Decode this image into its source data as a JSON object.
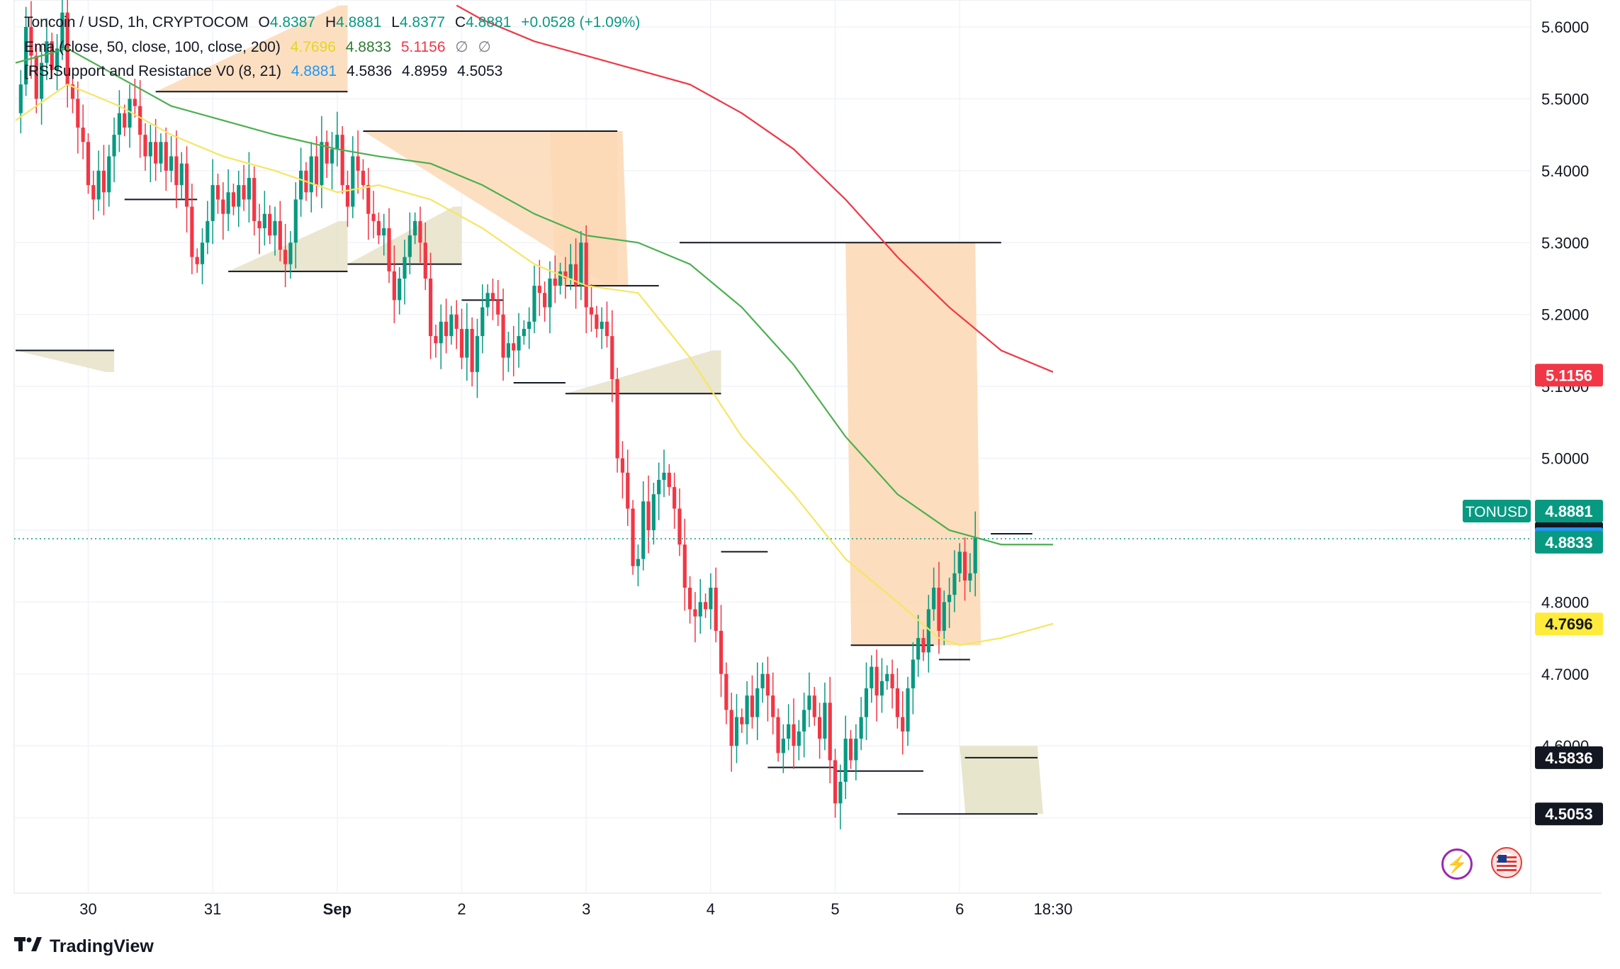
{
  "legend": {
    "line1": {
      "symbol": "Toncoin / USD, 1h, CRYPTOCOM",
      "o_label": "O",
      "o": "4.8387",
      "h_label": "H",
      "h": "4.8881",
      "l_label": "L",
      "l": "4.8377",
      "c_label": "C",
      "c": "4.8881",
      "change": "+0.0528 (+1.09%)"
    },
    "line2": {
      "name": "Ema (close, 50, close, 100, close, 200)",
      "v1": "4.7696",
      "v2": "4.8833",
      "v3": "5.1156",
      "e1": "∅",
      "e2": "∅"
    },
    "line3": {
      "name": "[RS]Support and Resistance V0 (8, 21)",
      "v1": "4.8881",
      "v2": "4.5836",
      "v3": "4.8959",
      "v4": "4.5053"
    }
  },
  "colors": {
    "up": "#089981",
    "down": "#f23645",
    "ema50": "#f5e663",
    "ema100": "#4caf50",
    "ema200": "#f23645",
    "resistance_fill": "#fcd9b6",
    "support_fill": "#e6e2c8",
    "level_line": "#131722",
    "price_line": "#089981",
    "grid": "#f0f3fa"
  },
  "footer": {
    "brand": "TradingView",
    "logo_icon": "tradingview-logo-icon"
  },
  "buttons": {
    "bolt_icon": "lightning-icon",
    "flag_icon": "us-flag-icon"
  },
  "chart_data": {
    "type": "candlestick",
    "title": "Toncoin / USD, 1h, CRYPTOCOM",
    "xlabel": "",
    "ylabel": "",
    "ylim": [
      4.44,
      5.64
    ],
    "grid": true,
    "x_ticks": [
      {
        "label": "30",
        "t": 14
      },
      {
        "label": "31",
        "t": 38
      },
      {
        "label": "Sep",
        "t": 62
      },
      {
        "label": "2",
        "t": 86
      },
      {
        "label": "3",
        "t": 110
      },
      {
        "label": "4",
        "t": 134
      },
      {
        "label": "5",
        "t": 158
      },
      {
        "label": "6",
        "t": 182
      },
      {
        "label": "18:30",
        "t": 200
      }
    ],
    "y_ticks": [
      {
        "label": "5.6000",
        "v": 5.6
      },
      {
        "label": "5.5000",
        "v": 5.5
      },
      {
        "label": "5.4000",
        "v": 5.4
      },
      {
        "label": "5.3000",
        "v": 5.3
      },
      {
        "label": "5.2000",
        "v": 5.2
      },
      {
        "label": "5.1000",
        "v": 5.1
      },
      {
        "label": "5.0000",
        "v": 5.0
      },
      {
        "label": "4.9000",
        "v": 4.9
      },
      {
        "label": "4.8000",
        "v": 4.8
      },
      {
        "label": "4.7000",
        "v": 4.7
      },
      {
        "label": "4.6000",
        "v": 4.6
      },
      {
        "label": "4.5000",
        "v": 4.5
      }
    ],
    "ohlc_path": [
      5.48,
      5.52,
      5.6,
      5.56,
      5.5,
      5.55,
      5.58,
      5.54,
      5.57,
      5.62,
      5.52,
      5.5,
      5.46,
      5.44,
      5.38,
      5.36,
      5.4,
      5.37,
      5.42,
      5.45,
      5.48,
      5.46,
      5.5,
      5.49,
      5.45,
      5.42,
      5.44,
      5.41,
      5.44,
      5.4,
      5.42,
      5.38,
      5.41,
      5.35,
      5.28,
      5.27,
      5.3,
      5.33,
      5.38,
      5.36,
      5.34,
      5.37,
      5.35,
      5.38,
      5.36,
      5.39,
      5.33,
      5.32,
      5.34,
      5.31,
      5.33,
      5.29,
      5.27,
      5.3,
      5.36,
      5.4,
      5.37,
      5.42,
      5.38,
      5.44,
      5.41,
      5.43,
      5.45,
      5.38,
      5.35,
      5.42,
      5.4,
      5.38,
      5.34,
      5.33,
      5.31,
      5.32,
      5.26,
      5.22,
      5.25,
      5.28,
      5.31,
      5.33,
      5.3,
      5.25,
      5.17,
      5.16,
      5.19,
      5.17,
      5.2,
      5.18,
      5.14,
      5.18,
      5.12,
      5.17,
      5.21,
      5.23,
      5.22,
      5.2,
      5.14,
      5.16,
      5.15,
      5.17,
      5.18,
      5.19,
      5.24,
      5.23,
      5.21,
      5.25,
      5.24,
      5.26,
      5.25,
      5.27,
      5.24,
      5.3,
      5.21,
      5.2,
      5.18,
      5.19,
      5.17,
      5.11,
      5.0,
      4.98,
      4.93,
      4.85,
      4.86,
      4.94,
      4.9,
      4.95,
      4.97,
      4.98,
      4.96,
      4.93,
      4.88,
      4.82,
      4.79,
      4.78,
      4.8,
      4.79,
      4.82,
      4.76,
      4.7,
      4.65,
      4.6,
      4.64,
      4.63,
      4.67,
      4.64,
      4.68,
      4.7,
      4.67,
      4.64,
      4.59,
      4.61,
      4.63,
      4.6,
      4.62,
      4.65,
      4.67,
      4.64,
      4.61,
      4.66,
      4.58,
      4.52,
      4.55,
      4.61,
      4.58,
      4.61,
      4.64,
      4.68,
      4.71,
      4.67,
      4.69,
      4.7,
      4.68,
      4.64,
      4.62,
      4.68,
      4.72,
      4.75,
      4.73,
      4.79,
      4.82,
      4.76,
      4.8,
      4.81,
      4.84,
      4.87,
      4.83,
      4.84,
      4.89
    ],
    "ema": [
      {
        "name": "EMA 50",
        "value": 4.7696,
        "points": [
          [
            0,
            5.47
          ],
          [
            10,
            5.52
          ],
          [
            20,
            5.49
          ],
          [
            30,
            5.45
          ],
          [
            40,
            5.42
          ],
          [
            50,
            5.4
          ],
          [
            62,
            5.37
          ],
          [
            70,
            5.38
          ],
          [
            80,
            5.36
          ],
          [
            90,
            5.32
          ],
          [
            100,
            5.27
          ],
          [
            110,
            5.24
          ],
          [
            120,
            5.23
          ],
          [
            130,
            5.14
          ],
          [
            140,
            5.03
          ],
          [
            150,
            4.95
          ],
          [
            160,
            4.86
          ],
          [
            170,
            4.8
          ],
          [
            178,
            4.75
          ],
          [
            182,
            4.74
          ],
          [
            190,
            4.75
          ],
          [
            200,
            4.77
          ]
        ]
      },
      {
        "name": "EMA 100",
        "value": 4.8833,
        "points": [
          [
            0,
            5.55
          ],
          [
            10,
            5.57
          ],
          [
            20,
            5.53
          ],
          [
            30,
            5.49
          ],
          [
            40,
            5.47
          ],
          [
            50,
            5.45
          ],
          [
            62,
            5.43
          ],
          [
            70,
            5.42
          ],
          [
            80,
            5.41
          ],
          [
            90,
            5.38
          ],
          [
            100,
            5.34
          ],
          [
            110,
            5.31
          ],
          [
            120,
            5.3
          ],
          [
            130,
            5.27
          ],
          [
            140,
            5.21
          ],
          [
            150,
            5.13
          ],
          [
            160,
            5.03
          ],
          [
            170,
            4.95
          ],
          [
            180,
            4.9
          ],
          [
            190,
            4.88
          ],
          [
            200,
            4.88
          ]
        ]
      },
      {
        "name": "EMA 200",
        "value": 5.1156,
        "points": [
          [
            85,
            5.63
          ],
          [
            90,
            5.61
          ],
          [
            100,
            5.58
          ],
          [
            110,
            5.56
          ],
          [
            120,
            5.54
          ],
          [
            130,
            5.52
          ],
          [
            140,
            5.48
          ],
          [
            150,
            5.43
          ],
          [
            160,
            5.36
          ],
          [
            170,
            5.28
          ],
          [
            180,
            5.21
          ],
          [
            190,
            5.15
          ],
          [
            200,
            5.12
          ]
        ]
      }
    ],
    "levels": [
      {
        "kind": "support",
        "value": 5.15,
        "t0": 0,
        "t1": 19,
        "fill_to": 5.12
      },
      {
        "kind": "resistance",
        "value": 5.51,
        "t0": 27,
        "t1": 64,
        "fill_to": 5.63
      },
      {
        "kind": "support",
        "value": 5.36,
        "t0": 21,
        "t1": 35
      },
      {
        "kind": "support",
        "value": 5.26,
        "t0": 41,
        "t1": 64,
        "fill_to": 5.33
      },
      {
        "kind": "support",
        "value": 5.27,
        "t0": 64,
        "t1": 86,
        "fill_to": 5.35
      },
      {
        "kind": "resistance",
        "value": 5.455,
        "t0": 67,
        "t1": 116,
        "fill_to": 5.24
      },
      {
        "kind": "support",
        "value": 5.22,
        "t0": 86,
        "t1": 94
      },
      {
        "kind": "resistance",
        "value": 5.24,
        "t0": 106,
        "t1": 124
      },
      {
        "kind": "support",
        "value": 5.105,
        "t0": 96,
        "t1": 106
      },
      {
        "kind": "support",
        "value": 5.09,
        "t0": 106,
        "t1": 136,
        "fill_to": 5.15
      },
      {
        "kind": "resistance",
        "value": 5.3,
        "t0": 128,
        "t1": 190
      },
      {
        "kind": "support",
        "value": 4.87,
        "t0": 136,
        "t1": 145
      },
      {
        "kind": "support",
        "value": 4.57,
        "t0": 145,
        "t1": 158
      },
      {
        "kind": "resistance",
        "value": 4.74,
        "t0": 161,
        "t1": 177
      },
      {
        "kind": "support",
        "value": 4.565,
        "t0": 158,
        "t1": 175
      },
      {
        "kind": "resistance",
        "value": 4.72,
        "t0": 178,
        "t1": 184
      },
      {
        "kind": "resistance",
        "value": 4.895,
        "t0": 188,
        "t1": 196
      },
      {
        "kind": "support",
        "value": 4.5836,
        "t0": 183,
        "t1": 197
      },
      {
        "kind": "support",
        "value": 4.5053,
        "t0": 170,
        "t1": 197
      }
    ],
    "zones": [
      {
        "kind": "resistance",
        "t_left": 103,
        "t_right": 117,
        "top": 5.455,
        "bottom": 5.24
      },
      {
        "kind": "resistance",
        "t_left": 160,
        "t_right": 185,
        "top": 5.3,
        "bottom": 4.74
      },
      {
        "kind": "support",
        "t_left": 182,
        "t_right": 197,
        "top": 4.6,
        "bottom": 4.5053
      }
    ],
    "last_price": 4.8881,
    "price_labels": [
      {
        "text": "4.8959",
        "v": 4.8959,
        "bg": "#131722",
        "fg": "#ffffff"
      },
      {
        "text": "4.8881",
        "v": 4.8881,
        "bg": "#2196f3",
        "fg": "#ffffff",
        "tag": "TONUSD",
        "tag_bg": "#089981"
      },
      {
        "text": "4.8833",
        "v": 4.8833,
        "bg": "#089981",
        "fg": "#ffffff"
      },
      {
        "text": "4.7696",
        "v": 4.7696,
        "bg": "#ffeb3b",
        "fg": "#131722"
      },
      {
        "text": "5.1156",
        "v": 5.1156,
        "bg": "#f23645",
        "fg": "#ffffff"
      },
      {
        "text": "4.5836",
        "v": 4.5836,
        "bg": "#131722",
        "fg": "#ffffff"
      },
      {
        "text": "4.5053",
        "v": 4.5053,
        "bg": "#131722",
        "fg": "#ffffff"
      }
    ]
  }
}
